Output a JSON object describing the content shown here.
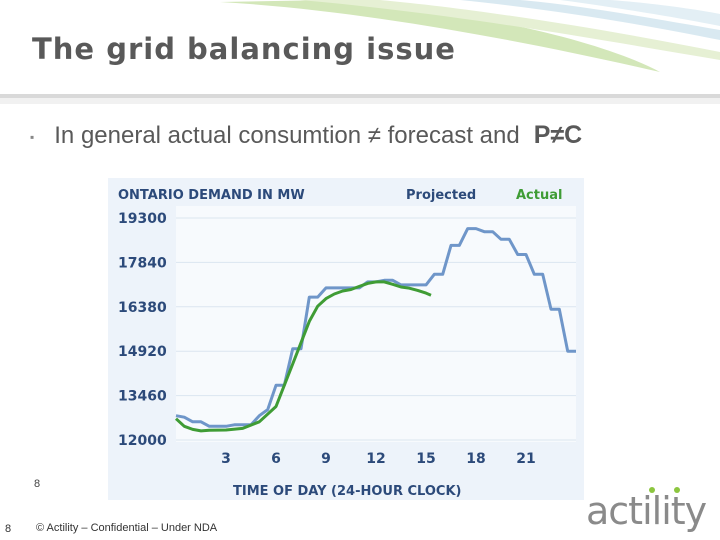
{
  "slide": {
    "title": "The grid balancing issue",
    "bullet_text": "In general actual consumtion ≠ forecast and",
    "bullet_formula": "P≠C",
    "footer_number": "8",
    "page_number": "8",
    "copyright": "© Actility – Confidential – Under NDA",
    "logo_text": "actility"
  },
  "colors": {
    "projected": "#6f96c9",
    "actual": "#3f9c35",
    "heading": "#2c4a7a",
    "chart_bg": "#edf3fa"
  },
  "chart_data": {
    "type": "line",
    "title": "ONTARIO DEMAND IN MW",
    "xlabel": "TIME OF DAY (24-HOUR CLOCK)",
    "ylabel": "",
    "xlim": [
      0,
      24
    ],
    "ylim": [
      12000,
      19300
    ],
    "x_ticks": [
      3,
      6,
      9,
      12,
      15,
      18,
      21
    ],
    "y_ticks": [
      12000,
      13460,
      14920,
      16380,
      17840,
      19300
    ],
    "series": [
      {
        "name": "Projected",
        "step": true,
        "points": [
          [
            0,
            12800
          ],
          [
            0.5,
            12750
          ],
          [
            1,
            12600
          ],
          [
            1.5,
            12600
          ],
          [
            2,
            12450
          ],
          [
            3,
            12450
          ],
          [
            3.5,
            12500
          ],
          [
            4.5,
            12500
          ],
          [
            5,
            12800
          ],
          [
            5.5,
            13000
          ],
          [
            6,
            13800
          ],
          [
            6.5,
            13800
          ],
          [
            7,
            15000
          ],
          [
            7.5,
            15000
          ],
          [
            8,
            16700
          ],
          [
            8.5,
            16700
          ],
          [
            9,
            17000
          ],
          [
            11,
            17000
          ],
          [
            11.5,
            17200
          ],
          [
            12,
            17200
          ],
          [
            12.5,
            17250
          ],
          [
            13,
            17250
          ],
          [
            13.5,
            17100
          ],
          [
            15,
            17100
          ],
          [
            15.5,
            17450
          ],
          [
            16,
            17450
          ],
          [
            16.5,
            18400
          ],
          [
            17,
            18400
          ],
          [
            17.5,
            18950
          ],
          [
            18,
            18950
          ],
          [
            18.5,
            18850
          ],
          [
            19,
            18850
          ],
          [
            19.5,
            18600
          ],
          [
            20,
            18600
          ],
          [
            20.5,
            18100
          ],
          [
            21,
            18100
          ],
          [
            21.5,
            17450
          ],
          [
            22,
            17450
          ],
          [
            22.5,
            16300
          ],
          [
            23,
            16300
          ],
          [
            23.5,
            14920
          ],
          [
            24,
            14920
          ]
        ]
      },
      {
        "name": "Actual",
        "step": false,
        "points": [
          [
            0,
            12700
          ],
          [
            0.5,
            12450
          ],
          [
            1,
            12350
          ],
          [
            1.5,
            12300
          ],
          [
            2,
            12320
          ],
          [
            3,
            12330
          ],
          [
            4,
            12380
          ],
          [
            5,
            12600
          ],
          [
            6,
            13100
          ],
          [
            6.5,
            13800
          ],
          [
            7,
            14500
          ],
          [
            7.5,
            15200
          ],
          [
            8,
            15900
          ],
          [
            8.5,
            16400
          ],
          [
            9,
            16650
          ],
          [
            9.5,
            16800
          ],
          [
            10,
            16900
          ],
          [
            10.5,
            16950
          ],
          [
            11,
            17050
          ],
          [
            11.5,
            17150
          ],
          [
            12,
            17200
          ],
          [
            12.5,
            17200
          ],
          [
            13,
            17120
          ],
          [
            13.5,
            17030
          ],
          [
            14,
            16990
          ],
          [
            14.5,
            16920
          ],
          [
            15,
            16830
          ],
          [
            15.3,
            16760
          ]
        ]
      }
    ]
  }
}
